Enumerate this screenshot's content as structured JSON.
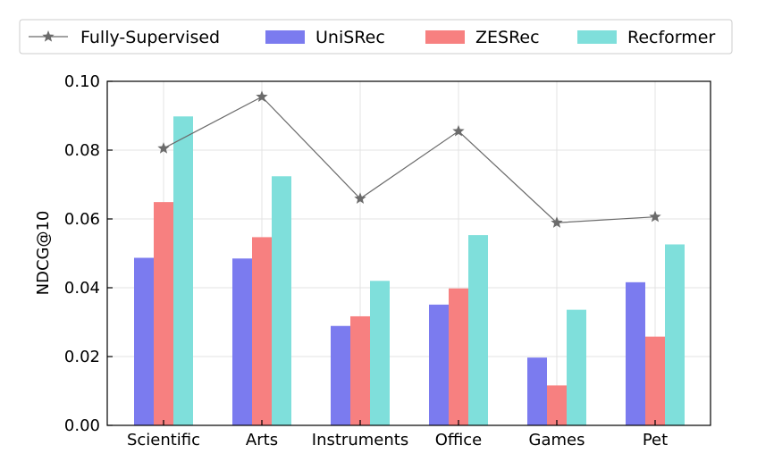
{
  "chart_data": {
    "type": "bar",
    "categories": [
      "Scientific",
      "Arts",
      "Instruments",
      "Office",
      "Games",
      "Pet"
    ],
    "ylabel": "NDCG@10",
    "xlabel": "",
    "ylim": [
      0,
      0.1
    ],
    "yticks": [
      "0.00",
      "0.02",
      "0.04",
      "0.06",
      "0.08",
      "0.10"
    ],
    "grid": true,
    "legend_position": "top",
    "series": [
      {
        "name": "UniSRec",
        "kind": "bar",
        "color": "#7b7bef",
        "values": [
          0.0487,
          0.0485,
          0.0289,
          0.0351,
          0.0197,
          0.0416
        ]
      },
      {
        "name": "ZESRec",
        "kind": "bar",
        "color": "#f78080",
        "values": [
          0.0649,
          0.0547,
          0.0317,
          0.0398,
          0.0116,
          0.0258
        ]
      },
      {
        "name": "Recformer",
        "kind": "bar",
        "color": "#7fdfdb",
        "values": [
          0.0898,
          0.0724,
          0.042,
          0.0553,
          0.0336,
          0.0526
        ]
      },
      {
        "name": "Fully-Supervised",
        "kind": "line",
        "color": "#6b6b6b",
        "values": [
          0.0805,
          0.0955,
          0.0659,
          0.0855,
          0.0589,
          0.0606
        ]
      }
    ]
  }
}
